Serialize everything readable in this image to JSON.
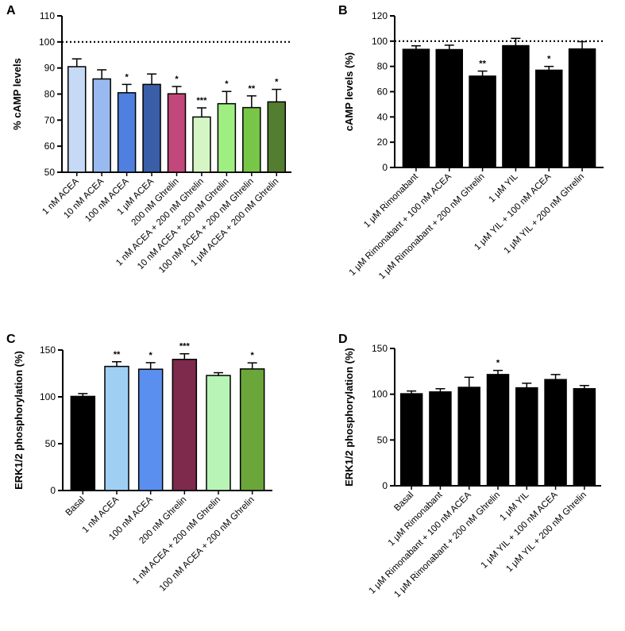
{
  "chart_data": [
    {
      "panel": "A",
      "type": "bar",
      "ylabel": "% cAMP levels",
      "ylim": [
        50,
        110
      ],
      "yticks": [
        50,
        60,
        70,
        80,
        90,
        100,
        110
      ],
      "reference_line": 100,
      "categories": [
        "1 nM ACEA",
        "10 nM ACEA",
        "100 nM ACEA",
        "1 μM ACEA",
        "200 nM Ghrelin",
        "1 nM ACEA + 200 nM Ghrelin",
        "10 nM ACEA + 200 nM Ghrelin",
        "100 nM ACEA + 200 nM Ghrelin",
        "1 μM ACEA + 200 nM Ghrelin"
      ],
      "values": [
        90.5,
        85.8,
        80.5,
        83.7,
        80.1,
        71.2,
        76.3,
        74.8,
        77.0
      ],
      "errors": [
        3.0,
        3.5,
        3.2,
        4.0,
        2.8,
        3.5,
        4.7,
        4.5,
        4.8
      ],
      "significance": [
        "",
        "",
        "*",
        "",
        "*",
        "***",
        "*",
        "**",
        "*"
      ],
      "colors": [
        "#c6daf6",
        "#99baf0",
        "#4f80e0",
        "#3a5ea8",
        "#c2477a",
        "#d5f6c4",
        "#9fee82",
        "#78c648",
        "#537d31"
      ]
    },
    {
      "panel": "B",
      "type": "bar",
      "ylabel": "cAMP levels (%)",
      "ylim": [
        0,
        120
      ],
      "yticks": [
        0,
        20,
        40,
        60,
        80,
        100,
        120
      ],
      "reference_line": 100,
      "categories": [
        "1 μM Rimonabant",
        "1 μM Rimonabant + 100 nM ACEA",
        "1 μM Rimonabant + 200 nM Ghrelin",
        "1 μM YIL",
        "1 μM YIL + 100 nM ACEA",
        "1 μM YIL + 200 nM Ghrelin"
      ],
      "values": [
        93.5,
        93.3,
        72.3,
        96.4,
        77.0,
        93.8
      ],
      "errors": [
        2.8,
        3.5,
        4.0,
        5.8,
        3.0,
        5.8
      ],
      "significance": [
        "",
        "",
        "**",
        "",
        "*",
        ""
      ],
      "colors": [
        "#000000",
        "#000000",
        "#000000",
        "#000000",
        "#000000",
        "#000000"
      ]
    },
    {
      "panel": "C",
      "type": "bar",
      "ylabel": "ERK1/2 phosphorylation (%)",
      "ylim": [
        0,
        150
      ],
      "yticks": [
        0,
        50,
        100,
        150
      ],
      "categories": [
        "Basal",
        "1 nM ACEA",
        "100 nM ACEA",
        "200 nM Ghrelin",
        "1 nM ACEA + 200 nM Ghrelin",
        "100 nM ACEA + 200 nM Ghrelin"
      ],
      "values": [
        100.5,
        132.5,
        129.5,
        140.0,
        122.8,
        129.8
      ],
      "errors": [
        3.0,
        5.0,
        7.0,
        6.0,
        3.0,
        6.5
      ],
      "significance": [
        "",
        "**",
        "*",
        "***",
        "",
        "*"
      ],
      "colors": [
        "#000000",
        "#9fd0f4",
        "#5a8ff0",
        "#7d2a4c",
        "#b8f4b6",
        "#6aa63a"
      ]
    },
    {
      "panel": "D",
      "type": "bar",
      "ylabel": "ERK1/2 phosphorylation (%)",
      "ylim": [
        0,
        150
      ],
      "yticks": [
        0,
        50,
        100,
        150
      ],
      "categories": [
        "Basal",
        "1 μM Rimonabant",
        "1 μM Rimonabant + 100 nM ACEA",
        "1 μM Rimonabant + 200 nM Ghrelin",
        "1 μM YIL",
        "1 μM YIL + 100 nM ACEA",
        "1 μM YIL + 200 nM Ghrelin"
      ],
      "values": [
        100.5,
        102.5,
        107.5,
        121.5,
        107.0,
        116.0,
        106.0
      ],
      "errors": [
        3.0,
        3.5,
        11.0,
        4.5,
        5.0,
        5.5,
        3.5
      ],
      "significance": [
        "",
        "",
        "",
        "*",
        "",
        "",
        ""
      ],
      "colors": [
        "#000000",
        "#000000",
        "#000000",
        "#000000",
        "#000000",
        "#000000",
        "#000000"
      ]
    }
  ]
}
